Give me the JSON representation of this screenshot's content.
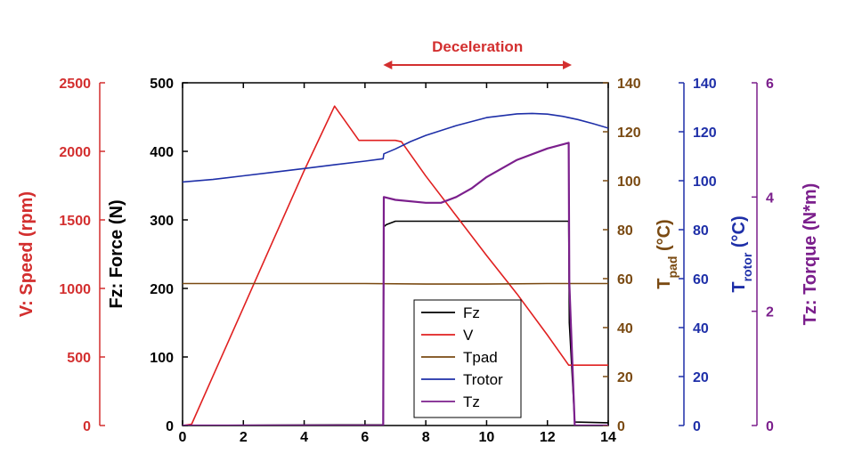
{
  "chart_data": {
    "type": "line",
    "xlabel": "",
    "xlim": [
      0,
      14
    ],
    "x_ticks": [
      0,
      2,
      4,
      6,
      8,
      10,
      12,
      14
    ],
    "grid": false,
    "legend_position": "bottom-center",
    "annotation": {
      "text": "Deceleration",
      "x_start": 6.6,
      "x_end": 12.8,
      "color": "#d32f2f"
    },
    "axes": [
      {
        "id": "v",
        "label": "V: Speed (rpm)",
        "ylim": [
          0,
          2500
        ],
        "ticks": [
          0,
          500,
          1000,
          1500,
          2000,
          2500
        ],
        "color": "#d32f2f",
        "side": "left-outer"
      },
      {
        "id": "fz",
        "label": "Fz: Force (N)",
        "ylim": [
          0,
          500
        ],
        "ticks": [
          0,
          100,
          200,
          300,
          400,
          500
        ],
        "color": "#000000",
        "side": "left"
      },
      {
        "id": "tpad",
        "label_main": "T",
        "label_sub": "pad",
        "label_tail": " (°C)",
        "ylim": [
          0,
          140
        ],
        "ticks": [
          0,
          20,
          40,
          60,
          80,
          100,
          120,
          140
        ],
        "color": "#7a4a12",
        "side": "right"
      },
      {
        "id": "trotor",
        "label_main": "T",
        "label_sub": "rotor",
        "label_tail": " (°C)",
        "ylim": [
          0,
          140
        ],
        "ticks": [
          0,
          20,
          40,
          60,
          80,
          100,
          120,
          140
        ],
        "color": "#1e2fa8",
        "side": "right-2"
      },
      {
        "id": "tz",
        "label": "Tz: Torque (N*m)",
        "ylim": [
          0,
          6
        ],
        "ticks": [
          0,
          2,
          4,
          6
        ],
        "color": "#7b1f8c",
        "side": "right-3"
      }
    ],
    "series": [
      {
        "name": "Fz",
        "axis": "fz",
        "color": "#000000",
        "x": [
          0,
          3,
          6.6,
          6.62,
          6.7,
          7.0,
          12.7,
          12.72,
          12.9,
          14
        ],
        "y": [
          0,
          0.5,
          1,
          290,
          293,
          298,
          298,
          150,
          5,
          4
        ]
      },
      {
        "name": "V",
        "axis": "v",
        "color": "#e02020",
        "x": [
          0,
          0.3,
          1,
          2,
          3,
          4,
          5,
          5.8,
          6.0,
          7.0,
          7.2,
          8,
          9,
          10,
          11,
          12,
          12.7,
          13,
          14
        ],
        "y": [
          0,
          10,
          360,
          860,
          1360,
          1860,
          2330,
          2080,
          2080,
          2080,
          2070,
          1820,
          1530,
          1240,
          960,
          660,
          440,
          440,
          440
        ]
      },
      {
        "name": "Tpad",
        "axis": "tpad",
        "color": "#7a4a12",
        "x": [
          0,
          2,
          4,
          6,
          8,
          10,
          12,
          14
        ],
        "y": [
          58,
          58,
          58,
          58,
          57.8,
          57.8,
          58,
          58
        ]
      },
      {
        "name": "Trotor",
        "axis": "trotor",
        "color": "#1e2fa8",
        "x": [
          0,
          1,
          2,
          3,
          4,
          5,
          6,
          6.6,
          6.62,
          7,
          7.5,
          8,
          9,
          10,
          11,
          11.5,
          12,
          12.5,
          13,
          13.5,
          14
        ],
        "y": [
          99.5,
          100.5,
          102,
          103.5,
          105,
          106.5,
          108,
          109,
          111,
          113,
          116,
          118.5,
          122.5,
          125.8,
          127.3,
          127.5,
          127.2,
          126.3,
          125,
          123.3,
          121.5
        ]
      },
      {
        "name": "Tz",
        "axis": "tz",
        "color": "#7b1f8c",
        "x": [
          0,
          6.6,
          6.62,
          7,
          8,
          8.5,
          9,
          9.5,
          10,
          11,
          12,
          12.7,
          12.72,
          12.9,
          14
        ],
        "y": [
          0,
          0,
          4.0,
          3.95,
          3.9,
          3.9,
          4.0,
          4.15,
          4.35,
          4.65,
          4.85,
          4.95,
          2.5,
          0,
          0
        ]
      }
    ]
  }
}
